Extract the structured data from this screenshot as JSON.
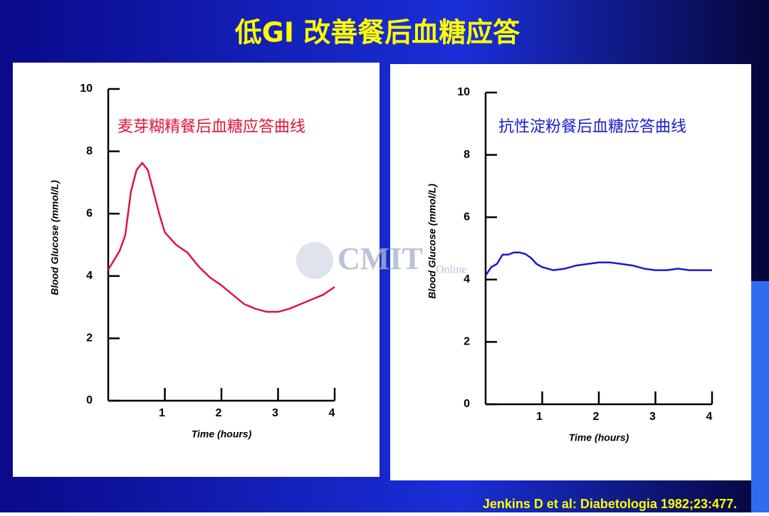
{
  "slide": {
    "title": "低GI 改善餐后血糖应答",
    "citation": "Jenkins D et al: Diabetologia 1982;23:477.",
    "watermark": [
      "CMIT",
      "Online"
    ]
  },
  "chart_data": [
    {
      "type": "line",
      "annotation": "麦芽糊精餐后血糖应答曲线",
      "xlabel": "Time (hours)",
      "ylabel": "Blood Glucose (mmol/L)",
      "xlim": [
        0,
        4
      ],
      "ylim": [
        0,
        10
      ],
      "xticks": [
        1,
        2,
        3,
        4
      ],
      "yticks": [
        0,
        2,
        4,
        6,
        8,
        10
      ],
      "grid": false,
      "x": [
        0,
        0.1,
        0.2,
        0.3,
        0.35,
        0.4,
        0.5,
        0.6,
        0.7,
        0.8,
        0.9,
        1.0,
        1.2,
        1.4,
        1.6,
        1.8,
        2.0,
        2.2,
        2.4,
        2.6,
        2.8,
        3.0,
        3.2,
        3.4,
        3.6,
        3.8,
        4.0
      ],
      "series": [
        {
          "name": "麦芽糊精",
          "color": "#e0143c",
          "values": [
            4.2,
            4.5,
            4.8,
            5.3,
            6.0,
            6.7,
            7.4,
            7.63,
            7.4,
            6.7,
            6.0,
            5.4,
            5.0,
            4.75,
            4.3,
            3.95,
            3.7,
            3.4,
            3.1,
            2.95,
            2.85,
            2.85,
            2.95,
            3.1,
            3.25,
            3.4,
            3.65
          ]
        }
      ]
    },
    {
      "type": "line",
      "annotation": "抗性淀粉餐后血糖应答曲线",
      "xlabel": "Time (hours)",
      "ylabel": "Blood Glucose (mmol/L)",
      "xlim": [
        0,
        4
      ],
      "ylim": [
        0,
        10
      ],
      "xticks": [
        1,
        2,
        3,
        4
      ],
      "yticks": [
        0,
        2,
        4,
        6,
        8,
        10
      ],
      "grid": false,
      "x": [
        0,
        0.1,
        0.2,
        0.3,
        0.4,
        0.5,
        0.6,
        0.7,
        0.8,
        0.9,
        1.0,
        1.2,
        1.4,
        1.6,
        1.8,
        2.0,
        2.2,
        2.4,
        2.6,
        2.8,
        3.0,
        3.2,
        3.4,
        3.6,
        3.8,
        4.0
      ],
      "series": [
        {
          "name": "抗性淀粉",
          "color": "#1a1ad0",
          "values": [
            4.13,
            4.4,
            4.5,
            4.8,
            4.8,
            4.87,
            4.87,
            4.82,
            4.7,
            4.5,
            4.4,
            4.3,
            4.35,
            4.45,
            4.5,
            4.55,
            4.55,
            4.5,
            4.45,
            4.35,
            4.3,
            4.3,
            4.35,
            4.3,
            4.3,
            4.3
          ]
        }
      ]
    }
  ]
}
